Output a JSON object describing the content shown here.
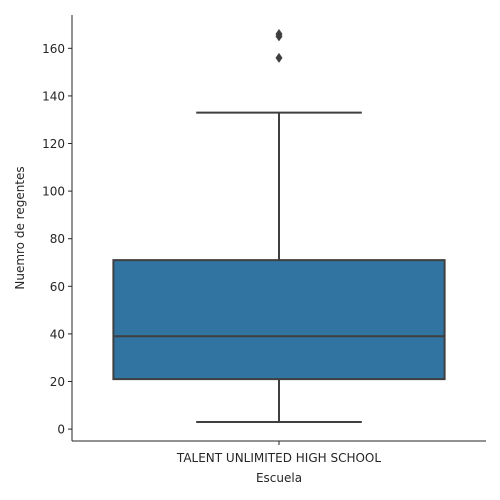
{
  "chart_data": {
    "type": "box",
    "categories": [
      "TALENT UNLIMITED HIGH SCHOOL"
    ],
    "boxes": [
      {
        "category": "TALENT UNLIMITED HIGH SCHOOL",
        "whisker_low": 3,
        "q1": 21,
        "median": 39,
        "q3": 71,
        "whisker_high": 133,
        "outliers": [
          156,
          165,
          166
        ]
      }
    ],
    "xlabel": "Escuela",
    "ylabel": "Nuemro de regentes",
    "ylim": [
      -5,
      174
    ],
    "yticks": [
      0,
      20,
      40,
      60,
      80,
      100,
      120,
      140,
      160
    ],
    "box_color": "#3274a1",
    "line_color": "#3f3f3f",
    "grid": false
  }
}
